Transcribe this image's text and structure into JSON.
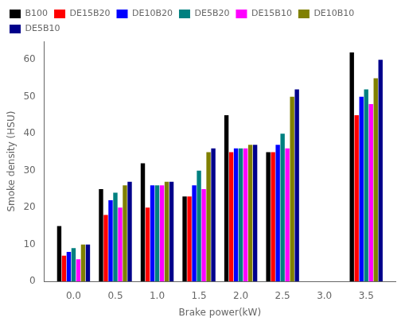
{
  "chart_data": {
    "type": "bar",
    "x": [
      0.0,
      0.5,
      1.0,
      1.5,
      2.0,
      2.5,
      3.5
    ],
    "series": [
      {
        "name": "B100",
        "color": "#000000",
        "values": [
          15,
          25,
          32,
          23,
          45,
          35,
          62
        ]
      },
      {
        "name": "DE15B20",
        "color": "#ff0000",
        "values": [
          7,
          18,
          20,
          23,
          35,
          35,
          45
        ]
      },
      {
        "name": "DE10B20",
        "color": "#0000ff",
        "values": [
          8,
          22,
          26,
          26,
          36,
          37,
          50
        ]
      },
      {
        "name": "DE5B20",
        "color": "#008080",
        "values": [
          9,
          24,
          26,
          30,
          36,
          40,
          52
        ]
      },
      {
        "name": "DE15B10",
        "color": "#ff00ff",
        "values": [
          6,
          20,
          26,
          25,
          36,
          36,
          48
        ]
      },
      {
        "name": "DE10B10",
        "color": "#808000",
        "values": [
          10,
          26,
          27,
          35,
          37,
          50,
          55
        ]
      },
      {
        "name": "DE5B10",
        "color": "#00008b",
        "values": [
          10,
          27,
          27,
          36,
          37,
          52,
          60
        ]
      }
    ],
    "xlabel": "Brake power(kW)",
    "ylabel": "Smoke density (HSU)",
    "xlim": [
      -0.35,
      3.85
    ],
    "xticks": [
      {
        "value": 0,
        "label": "0.0"
      },
      0.5,
      {
        "value": 1,
        "label": "1.0"
      },
      1.5,
      {
        "value": 2,
        "label": "2.0"
      },
      2.5,
      {
        "value": 3,
        "label": "3.0"
      },
      3.5
    ],
    "ylim": [
      0,
      65
    ],
    "yticks": [
      0,
      10,
      20,
      30,
      40,
      50,
      60
    ],
    "grid": false,
    "legend": "upper left"
  }
}
